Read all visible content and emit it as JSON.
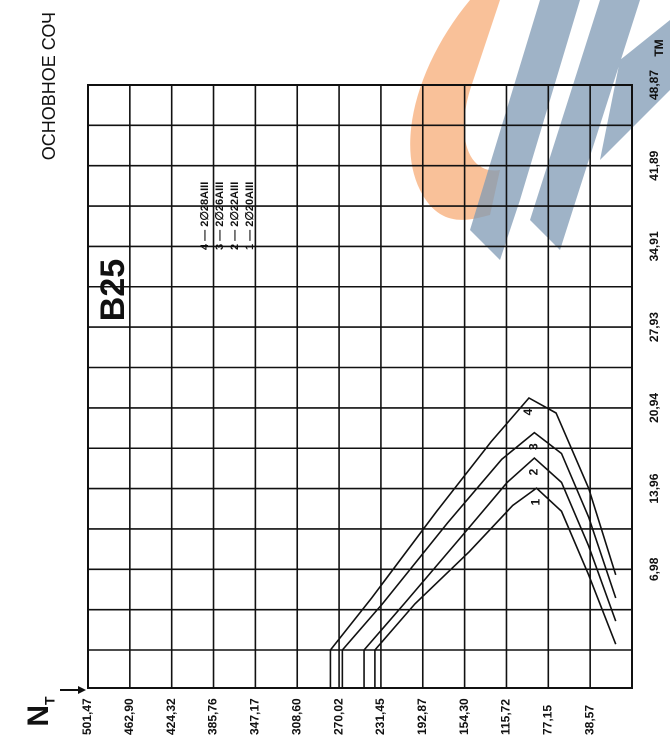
{
  "chart_data": {
    "type": "line",
    "title": "В25",
    "header_text": "ОСНОВНОЕ СОЧ",
    "x_label": "N",
    "x_label_sub": "Т",
    "y_label": "M",
    "y_label_sub": "ТМ",
    "xlim": [
      501.47,
      0
    ],
    "ylim": [
      0,
      48.87
    ],
    "xticks": [
      {
        "value": 501.47,
        "label": "501,47"
      },
      {
        "value": 462.9,
        "label": "462,90"
      },
      {
        "value": 424.32,
        "label": "424,32"
      },
      {
        "value": 385.76,
        "label": "385,76"
      },
      {
        "value": 347.17,
        "label": "347,17"
      },
      {
        "value": 308.6,
        "label": "308,60"
      },
      {
        "value": 270.02,
        "label": "270,02"
      },
      {
        "value": 231.45,
        "label": "231,45"
      },
      {
        "value": 192.87,
        "label": "192,87"
      },
      {
        "value": 154.3,
        "label": "154,30"
      },
      {
        "value": 115.72,
        "label": "115,72"
      },
      {
        "value": 77.15,
        "label": "77,15"
      },
      {
        "value": 38.57,
        "label": "38,57"
      }
    ],
    "yticks": [
      {
        "value": 6.98,
        "label": "6,98"
      },
      {
        "value": 13.96,
        "label": "13,96"
      },
      {
        "value": 20.94,
        "label": "20,94"
      },
      {
        "value": 27.93,
        "label": "27,93"
      },
      {
        "value": 34.91,
        "label": "34,91"
      },
      {
        "value": 41.89,
        "label": "41,89"
      },
      {
        "value": 48.87,
        "label": "48,87"
      }
    ],
    "grid": true,
    "series": [
      {
        "name": "4 — 2∅28AIII",
        "curve_label": "4",
        "color": "#111111",
        "x": [
          278,
          240,
          180,
          130,
          95,
          70,
          40,
          15
        ],
        "values": [
          0,
          4.5,
          12,
          18,
          21.8,
          20.5,
          14,
          6.5
        ]
      },
      {
        "name": "3 — 2∅26AIII",
        "curve_label": "3",
        "color": "#111111",
        "x": [
          267,
          230,
          170,
          120,
          90,
          65,
          40,
          15
        ],
        "values": [
          0,
          4,
          11,
          16.5,
          18.8,
          17,
          11.5,
          4.5
        ]
      },
      {
        "name": "2 — 2∅22AIII",
        "curve_label": "2",
        "color": "#111111",
        "x": [
          247,
          210,
          160,
          115,
          90,
          65,
          40,
          15
        ],
        "values": [
          0,
          4,
          9.5,
          14.5,
          16.6,
          14.5,
          9,
          2.5
        ]
      },
      {
        "name": "1 — 2∅20AIII",
        "curve_label": "1",
        "color": "#111111",
        "x": [
          237,
          200,
          150,
          110,
          88,
          65,
          40,
          15
        ],
        "values": [
          0,
          4,
          8.5,
          12.5,
          14,
          12,
          6.5,
          0.5
        ]
      }
    ]
  }
}
